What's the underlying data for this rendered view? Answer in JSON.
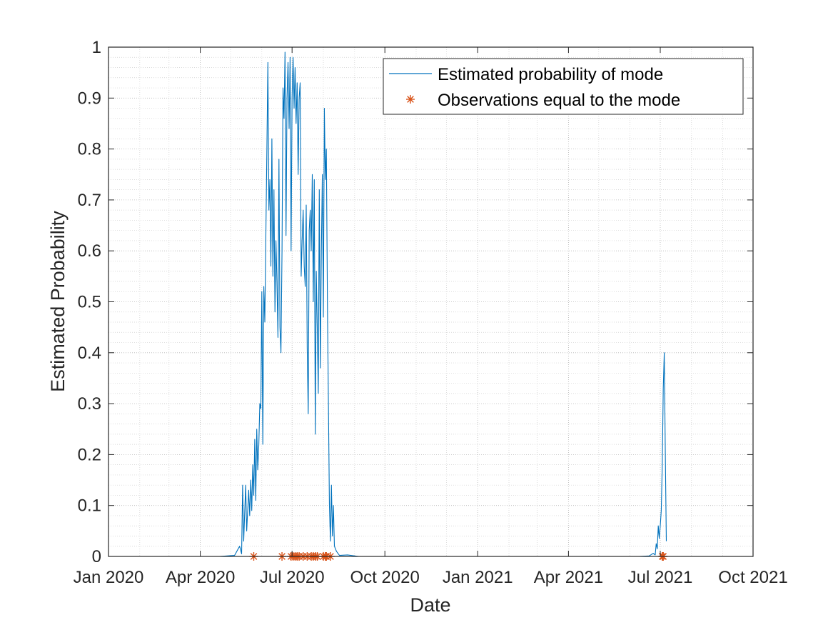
{
  "chart_data": {
    "type": "line",
    "title": "",
    "xlabel": "Date",
    "ylabel": "Estimated Probability",
    "x_axis_type": "date",
    "xlim": [
      "2020-01-01",
      "2021-10-01"
    ],
    "ylim": [
      0,
      1
    ],
    "x_ticks": [
      {
        "date": "2020-01-01",
        "label": "Jan 2020"
      },
      {
        "date": "2020-04-01",
        "label": "Apr 2020"
      },
      {
        "date": "2020-07-01",
        "label": "Jul 2020"
      },
      {
        "date": "2020-10-01",
        "label": "Oct 2020"
      },
      {
        "date": "2021-01-01",
        "label": "Jan 2021"
      },
      {
        "date": "2021-04-01",
        "label": "Apr 2021"
      },
      {
        "date": "2021-07-01",
        "label": "Jul 2021"
      },
      {
        "date": "2021-10-01",
        "label": "Oct 2021"
      }
    ],
    "y_ticks": [
      0,
      0.1,
      0.2,
      0.3,
      0.4,
      0.5,
      0.6,
      0.7,
      0.8,
      0.9,
      1
    ],
    "y_tick_labels": [
      "0",
      "0.1",
      "0.2",
      "0.3",
      "0.4",
      "0.5",
      "0.6",
      "0.7",
      "0.8",
      "0.9",
      "1"
    ],
    "grid": "on (minor dotted)",
    "legend_position": "top-right",
    "series": [
      {
        "name": "Estimated probability of mode",
        "style": "line",
        "color": "#0072BD",
        "points": [
          [
            "2020-01-01",
            0
          ],
          [
            "2020-03-27",
            0
          ],
          [
            "2020-04-20",
            0
          ],
          [
            "2020-05-05",
            0.002
          ],
          [
            "2020-05-10",
            0.02
          ],
          [
            "2020-05-12",
            0.005
          ],
          [
            "2020-05-13",
            0.14
          ],
          [
            "2020-05-14",
            0.03
          ],
          [
            "2020-05-16",
            0.14
          ],
          [
            "2020-05-17",
            0.05
          ],
          [
            "2020-05-19",
            0.13
          ],
          [
            "2020-05-20",
            0.08
          ],
          [
            "2020-05-21",
            0.15
          ],
          [
            "2020-05-22",
            0.09
          ],
          [
            "2020-05-23",
            0.18
          ],
          [
            "2020-05-24",
            0.12
          ],
          [
            "2020-05-25",
            0.23
          ],
          [
            "2020-05-26",
            0.11
          ],
          [
            "2020-05-27",
            0.25
          ],
          [
            "2020-05-28",
            0.17
          ],
          [
            "2020-05-29",
            0.22
          ],
          [
            "2020-05-30",
            0.3
          ],
          [
            "2020-05-31",
            0.29
          ],
          [
            "2020-06-01",
            0.52
          ],
          [
            "2020-06-02",
            0.22
          ],
          [
            "2020-06-03",
            0.53
          ],
          [
            "2020-06-04",
            0.46
          ],
          [
            "2020-06-06",
            0.8
          ],
          [
            "2020-06-07",
            0.97
          ],
          [
            "2020-06-08",
            0.68
          ],
          [
            "2020-06-09",
            0.74
          ],
          [
            "2020-06-10",
            0.57
          ],
          [
            "2020-06-11",
            0.82
          ],
          [
            "2020-06-12",
            0.55
          ],
          [
            "2020-06-13",
            0.72
          ],
          [
            "2020-06-14",
            0.48
          ],
          [
            "2020-06-15",
            0.62
          ],
          [
            "2020-06-16",
            0.54
          ],
          [
            "2020-06-17",
            0.43
          ],
          [
            "2020-06-18",
            0.78
          ],
          [
            "2020-06-19",
            0.45
          ],
          [
            "2020-06-20",
            0.4
          ],
          [
            "2020-06-21",
            0.6
          ],
          [
            "2020-06-22",
            0.92
          ],
          [
            "2020-06-23",
            0.86
          ],
          [
            "2020-06-24",
            0.99
          ],
          [
            "2020-06-25",
            0.63
          ],
          [
            "2020-06-26",
            0.9
          ],
          [
            "2020-06-27",
            0.97
          ],
          [
            "2020-06-28",
            0.84
          ],
          [
            "2020-06-29",
            0.98
          ],
          [
            "2020-06-30",
            0.6
          ],
          [
            "2020-07-01",
            0.9
          ],
          [
            "2020-07-02",
            0.98
          ],
          [
            "2020-07-03",
            0.88
          ],
          [
            "2020-07-04",
            0.96
          ],
          [
            "2020-07-05",
            0.85
          ],
          [
            "2020-07-06",
            0.93
          ],
          [
            "2020-07-07",
            0.75
          ],
          [
            "2020-07-08",
            0.9
          ],
          [
            "2020-07-09",
            0.93
          ],
          [
            "2020-07-10",
            0.55
          ],
          [
            "2020-07-11",
            0.62
          ],
          [
            "2020-07-12",
            0.68
          ],
          [
            "2020-07-13",
            0.57
          ],
          [
            "2020-07-14",
            0.53
          ],
          [
            "2020-07-15",
            0.69
          ],
          [
            "2020-07-16",
            0.41
          ],
          [
            "2020-07-17",
            0.28
          ],
          [
            "2020-07-18",
            0.64
          ],
          [
            "2020-07-19",
            0.68
          ],
          [
            "2020-07-20",
            0.6
          ],
          [
            "2020-07-21",
            0.75
          ],
          [
            "2020-07-22",
            0.5
          ],
          [
            "2020-07-23",
            0.74
          ],
          [
            "2020-07-24",
            0.24
          ],
          [
            "2020-07-25",
            0.56
          ],
          [
            "2020-07-26",
            0.45
          ],
          [
            "2020-07-27",
            0.32
          ],
          [
            "2020-07-28",
            0.72
          ],
          [
            "2020-07-29",
            0.37
          ],
          [
            "2020-07-30",
            0.6
          ],
          [
            "2020-07-31",
            0.75
          ],
          [
            "2020-08-01",
            0.47
          ],
          [
            "2020-08-02",
            0.88
          ],
          [
            "2020-08-03",
            0.74
          ],
          [
            "2020-08-04",
            0.8
          ],
          [
            "2020-08-05",
            0.5
          ],
          [
            "2020-08-06",
            0.3
          ],
          [
            "2020-08-07",
            0.1
          ],
          [
            "2020-08-08",
            0.03
          ],
          [
            "2020-08-09",
            0.14
          ],
          [
            "2020-08-10",
            0.04
          ],
          [
            "2020-08-11",
            0.1
          ],
          [
            "2020-08-12",
            0.02
          ],
          [
            "2020-08-14",
            0.01
          ],
          [
            "2020-08-17",
            0.002
          ],
          [
            "2020-08-25",
            0.003
          ],
          [
            "2020-09-05",
            0
          ],
          [
            "2020-10-01",
            0
          ],
          [
            "2021-01-01",
            0
          ],
          [
            "2021-04-01",
            0
          ],
          [
            "2021-06-10",
            0
          ],
          [
            "2021-06-20",
            0.001
          ],
          [
            "2021-06-24",
            0.006
          ],
          [
            "2021-06-26",
            0.003
          ],
          [
            "2021-06-27",
            0.025
          ],
          [
            "2021-06-28",
            0.015
          ],
          [
            "2021-06-29",
            0.06
          ],
          [
            "2021-06-30",
            0.035
          ],
          [
            "2021-07-01",
            0.06
          ],
          [
            "2021-07-02",
            0.09
          ],
          [
            "2021-07-03",
            0.18
          ],
          [
            "2021-07-04",
            0.33
          ],
          [
            "2021-07-05",
            0.4
          ],
          [
            "2021-07-06",
            0.2
          ],
          [
            "2021-07-07",
            0.03
          ]
        ]
      },
      {
        "name": "Observations equal to the mode",
        "style": "marker",
        "marker": "*",
        "color": "#D95319",
        "points": [
          [
            "2020-05-24",
            0
          ],
          [
            "2020-06-21",
            0
          ],
          [
            "2020-06-30",
            0
          ],
          [
            "2020-07-02",
            0
          ],
          [
            "2020-07-04",
            0
          ],
          [
            "2020-07-06",
            0
          ],
          [
            "2020-07-08",
            0
          ],
          [
            "2020-07-12",
            0
          ],
          [
            "2020-07-16",
            0
          ],
          [
            "2020-07-20",
            0
          ],
          [
            "2020-07-22",
            0
          ],
          [
            "2020-07-24",
            0
          ],
          [
            "2020-07-26",
            0
          ],
          [
            "2020-08-01",
            0
          ],
          [
            "2020-08-03",
            0
          ],
          [
            "2020-08-04",
            0
          ],
          [
            "2020-08-08",
            0
          ],
          [
            "2021-07-03",
            0
          ],
          [
            "2021-07-04",
            0
          ]
        ]
      }
    ]
  }
}
